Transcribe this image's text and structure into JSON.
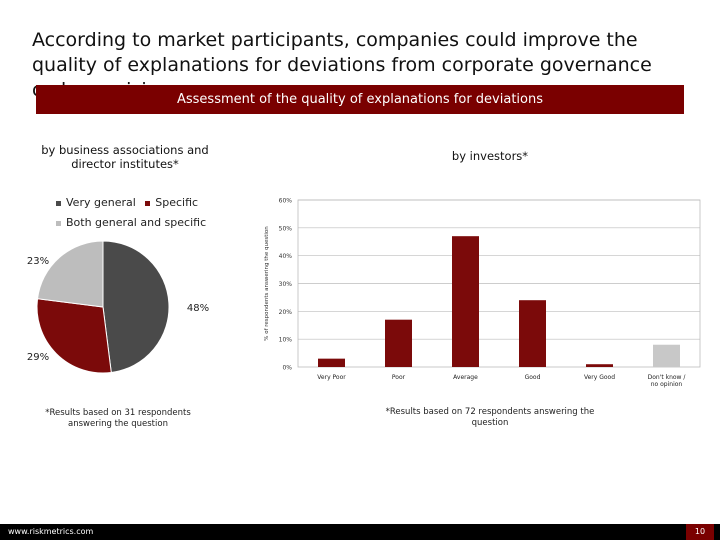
{
  "header": {
    "title": "According to market participants, companies could improve the quality of explanations for deviations from corporate governance code provisions",
    "banner": "Assessment of the quality of explanations for deviations"
  },
  "left_panel": {
    "subtitle": "by business associations and director institutes*",
    "footnote": "*Results based on 31 respondents answering the question"
  },
  "right_panel": {
    "subtitle": "by investors*",
    "footnote": "*Results based on 72 respondents answering the question"
  },
  "footer": {
    "url": "www.riskmetrics.com",
    "page": "10"
  },
  "chart_data": [
    {
      "type": "pie",
      "title": "",
      "legend_position": "top",
      "series": [
        {
          "name": "Very general",
          "value": 48,
          "label": "48%",
          "color": "#4a4a4a"
        },
        {
          "name": "Specific",
          "value": 29,
          "label": "29%",
          "color": "#7b0a0a"
        },
        {
          "name": "Both general and specific",
          "value": 23,
          "label": "23%",
          "color": "#bdbdbd"
        }
      ]
    },
    {
      "type": "bar",
      "title": "",
      "xlabel": "",
      "ylabel": "% of respondents answering the question",
      "ylim": [
        0,
        60
      ],
      "yticks": [
        "0%",
        "10%",
        "20%",
        "30%",
        "40%",
        "50%",
        "60%"
      ],
      "grid": true,
      "categories": [
        "Very Poor",
        "Poor",
        "Average",
        "Good",
        "Very Good",
        "Don't know / no opinion"
      ],
      "values": [
        3,
        17,
        47,
        24,
        1,
        8
      ],
      "colors": [
        "#7b0a0a",
        "#7b0a0a",
        "#7b0a0a",
        "#7b0a0a",
        "#7b0a0a",
        "#c8c8c8"
      ]
    }
  ]
}
